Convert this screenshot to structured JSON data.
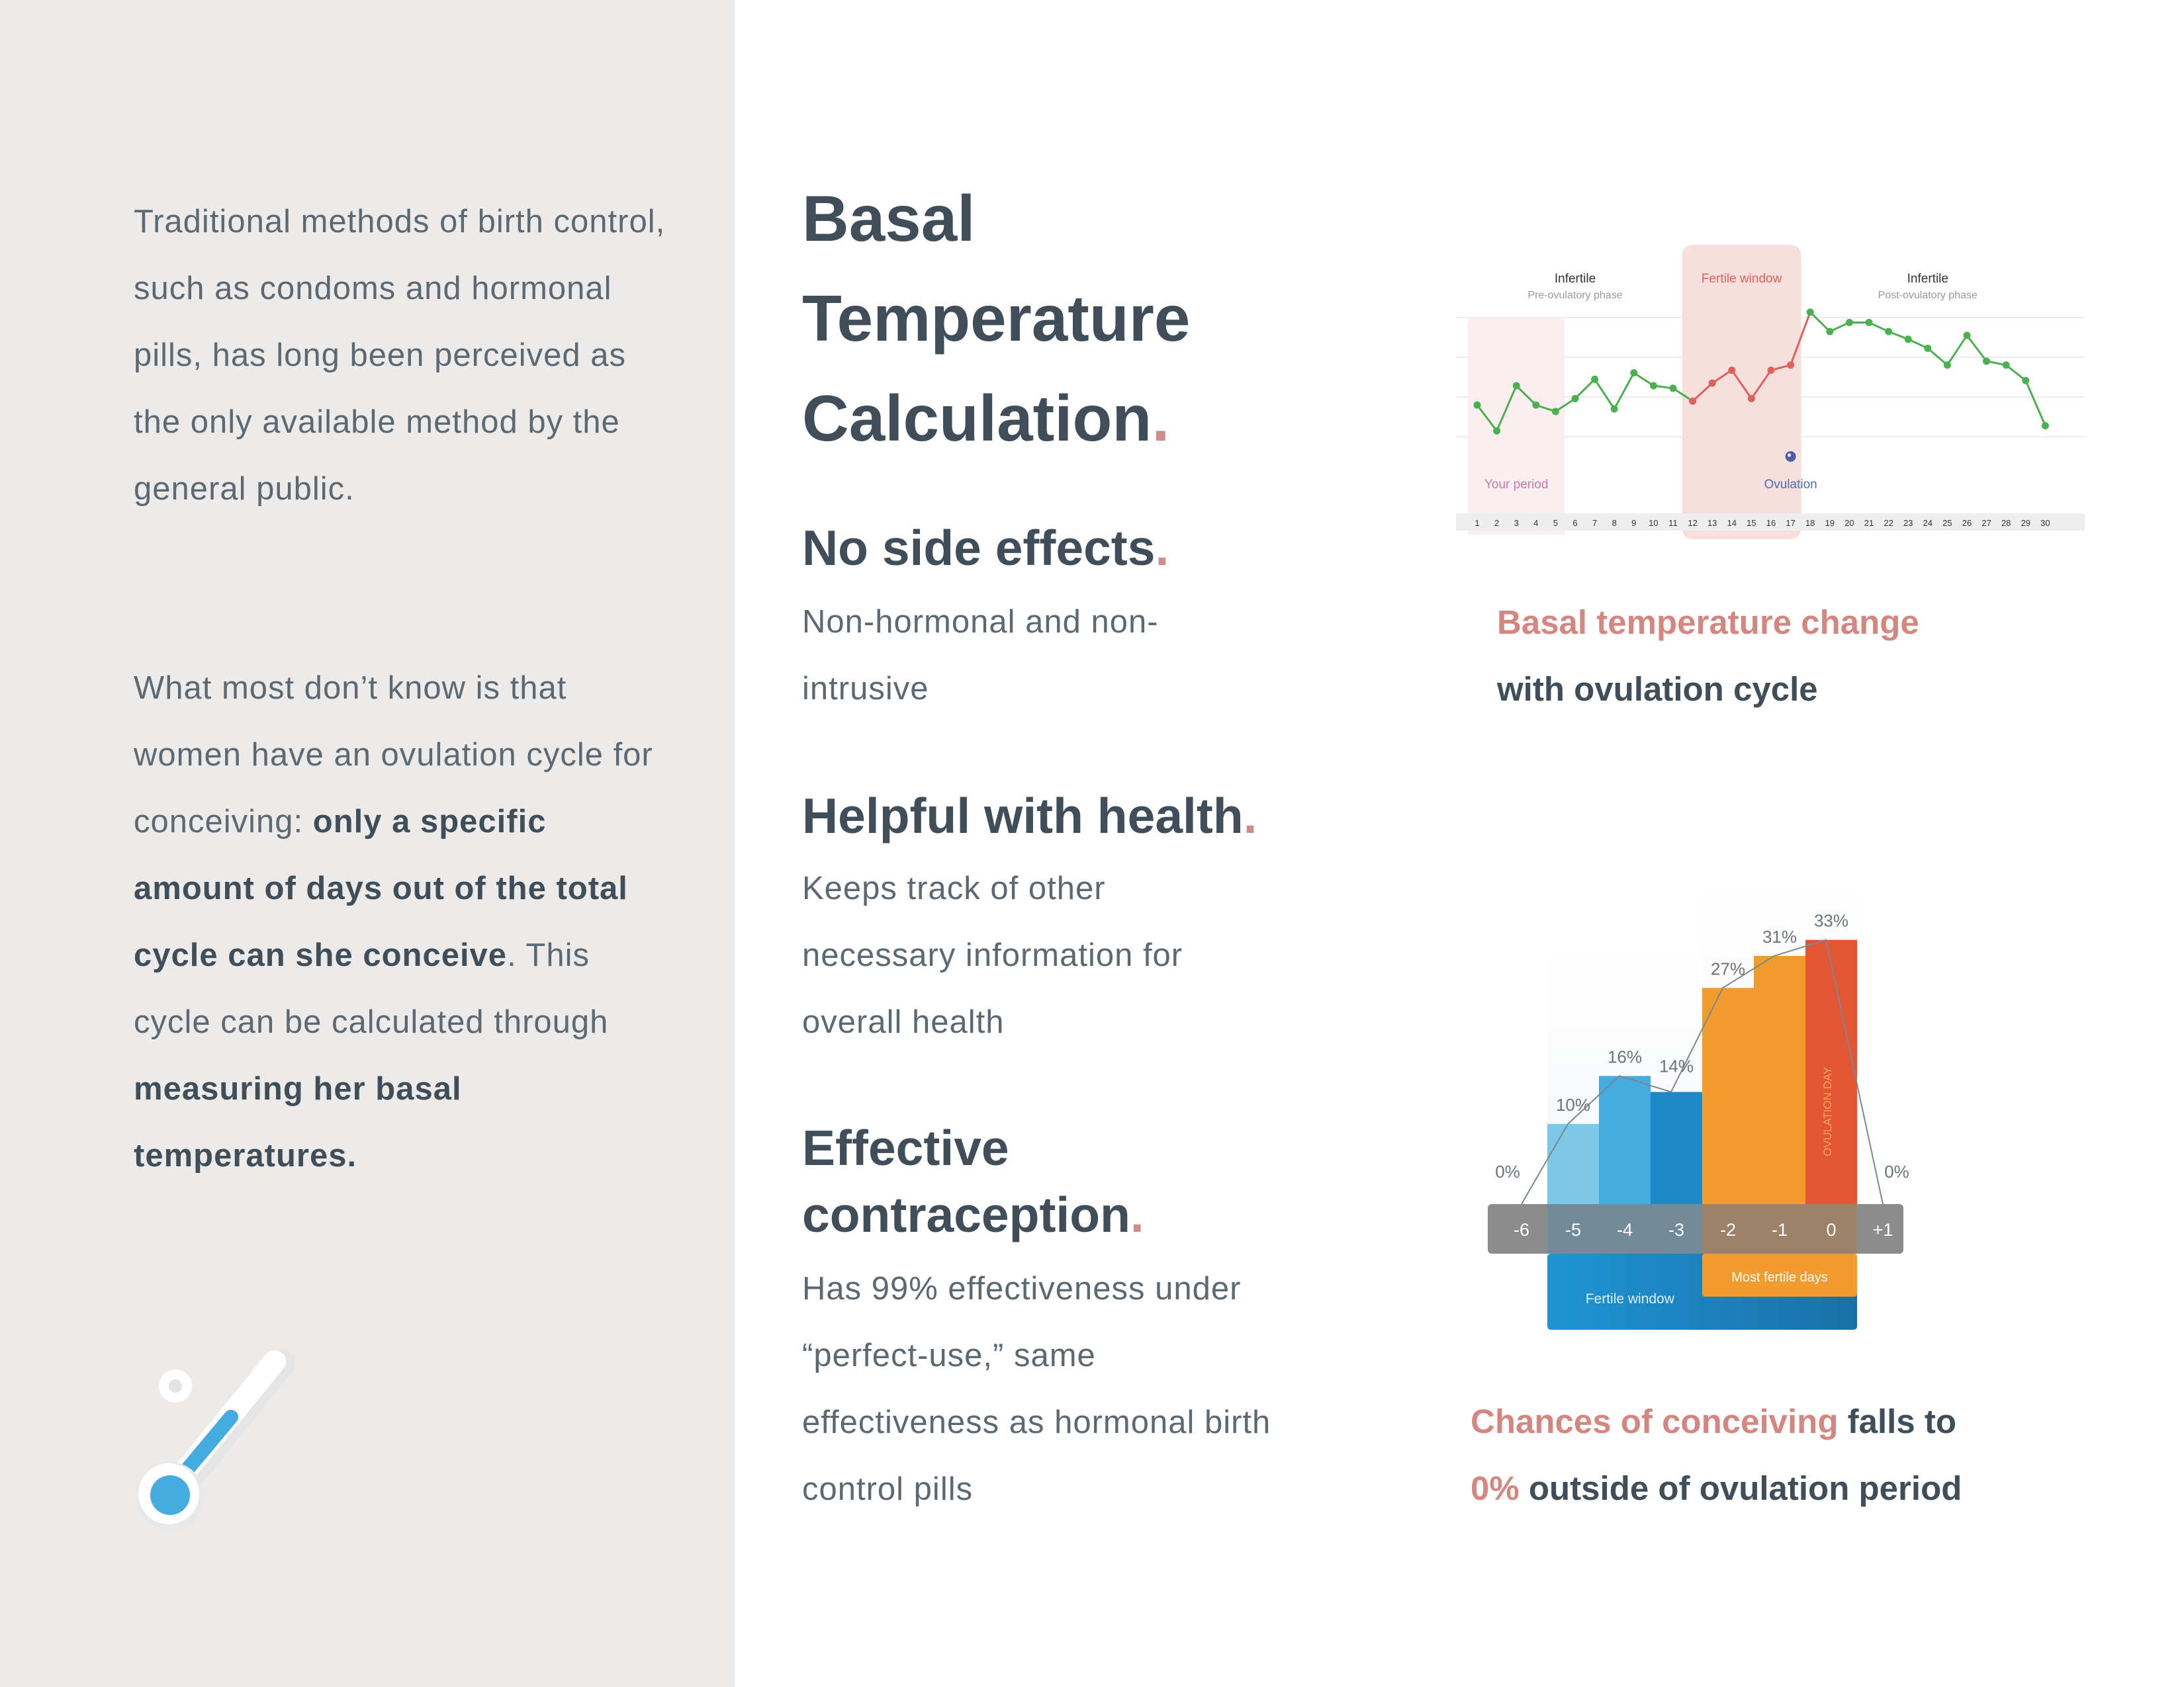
{
  "sidebar": {
    "p1": "Traditional methods of birth control, such as condoms and hormonal pills, has long been perceived as the only available method by the general public.",
    "p2_a": "What most don’t know is that women have an ovulation cycle for conceiving: ",
    "p2_b": "only a specific amount of days out of the total cycle can she conceive",
    "p2_c": ". This cycle can be calculated through ",
    "p2_d": "measuring her basal temperatures."
  },
  "title": {
    "line1": "Basal",
    "line2": "Temperature",
    "line3": "Calculation",
    "dot": "."
  },
  "features": [
    {
      "heading": "No side effects",
      "dot": ".",
      "text": "Non-hormonal and non-intrusive"
    },
    {
      "heading": "Helpful with health",
      "dot": ".",
      "text": "Keeps track of other necessary information for overall health"
    },
    {
      "heading_l1": "Effective",
      "heading_l2": "contraception",
      "dot": ".",
      "text": "Has 99% effectiveness under “perfect-use,” same effectiveness as hormonal birth control pills"
    }
  ],
  "caption1": {
    "pink": "Basal temperature change",
    "rest": "with ovulation cycle"
  },
  "caption2": {
    "pink1": "Chances of conceiving",
    "rest1": " falls to",
    "pink2": "0%",
    "rest2": " outside of ovulation period"
  },
  "colors": {
    "accent": "#d48680",
    "text_dark": "#3f4e59",
    "sidebar_bg": "#edebe9",
    "green_line": "#4caf50",
    "red_line": "#e0605a"
  },
  "chart_data": [
    {
      "type": "line",
      "labels": {
        "infertile_pre": "Infertile",
        "infertile_pre_sub": "Pre-ovulatory phase",
        "fertile_window": "Fertile window",
        "infertile_post": "Infertile",
        "infertile_post_sub": "Post-ovulatory phase",
        "your_period": "Your period",
        "ovulation": "Ovulation"
      },
      "x": [
        1,
        2,
        3,
        4,
        5,
        6,
        7,
        8,
        9,
        10,
        11,
        12,
        13,
        14,
        15,
        16,
        17,
        18,
        19,
        20,
        21,
        22,
        23,
        24,
        25,
        26,
        27,
        28,
        29,
        30
      ],
      "y": [
        4.5,
        2.5,
        6,
        4.5,
        4,
        5,
        6.5,
        4.2,
        7,
        6,
        5.8,
        4.8,
        6.2,
        7.2,
        5,
        7.2,
        7.6,
        11.7,
        10.2,
        10.9,
        10.9,
        10.2,
        9.6,
        8.9,
        7.6,
        9.9,
        7.9,
        7.6,
        6.4,
        2.9
      ],
      "period_days": [
        1,
        2,
        3,
        4,
        5
      ],
      "fertile_days": [
        12,
        13,
        14,
        15,
        16,
        17
      ],
      "ovulation_day": 17
    },
    {
      "type": "bar",
      "categories": [
        "-6",
        "-5",
        "-4",
        "-3",
        "-2",
        "-1",
        "0",
        "+1"
      ],
      "values": [
        0,
        10,
        16,
        14,
        27,
        31,
        33,
        0
      ],
      "value_labels": [
        "0%",
        "10%",
        "16%",
        "14%",
        "27%",
        "31%",
        "33%",
        "0%"
      ],
      "bar_colors": [
        "#000000",
        "#7ec8e7",
        "#45ace0",
        "#1e88c4",
        "#f39c2e",
        "#f39c2e",
        "#e35533",
        "#000000"
      ],
      "ovulation_day_label": "OVULATION DAY",
      "fertile_window_label": "Fertile window",
      "most_fertile_label": "Most fertile days",
      "ylim": [
        0,
        36
      ]
    }
  ]
}
